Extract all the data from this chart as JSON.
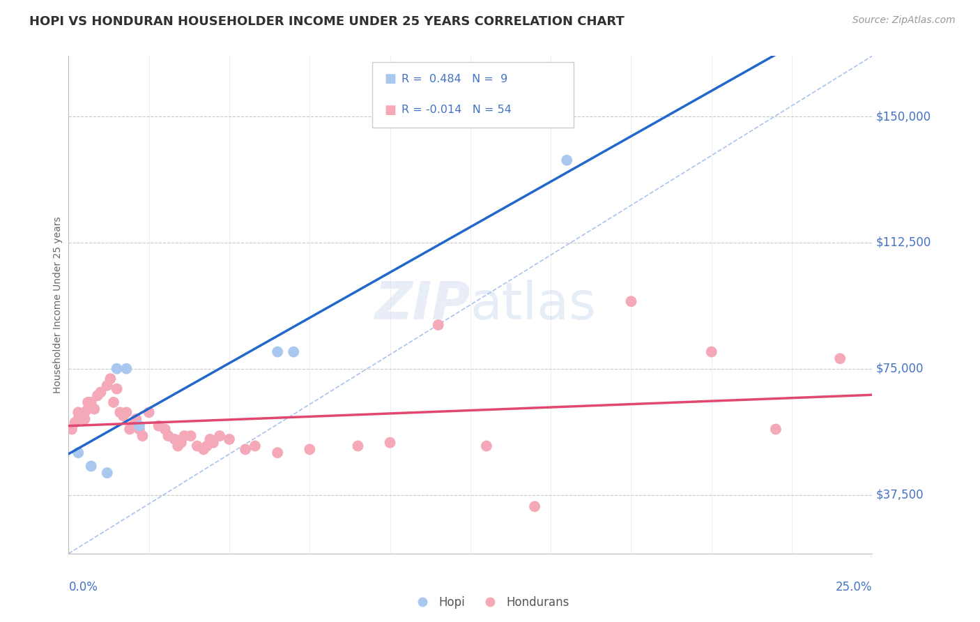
{
  "title": "HOPI VS HONDURAN HOUSEHOLDER INCOME UNDER 25 YEARS CORRELATION CHART",
  "source": "Source: ZipAtlas.com",
  "ylabel": "Householder Income Under 25 years",
  "xmin": 0.0,
  "xmax": 0.25,
  "ymin": 20000,
  "ymax": 168000,
  "ytick_labels": [
    "$150,000",
    "$112,500",
    "$75,000",
    "$37,500"
  ],
  "ytick_values": [
    150000,
    112500,
    75000,
    37500
  ],
  "legend_hopi_r": "0.484",
  "legend_hopi_n": "9",
  "legend_honduran_r": "-0.014",
  "legend_honduran_n": "54",
  "hopi_color": "#a8c8f0",
  "honduran_color": "#f4a8b8",
  "hopi_line_color": "#2268cc",
  "honduran_line_color": "#e04870",
  "diagonal_line_color": "#a0bcec",
  "bg_color": "#ffffff",
  "grid_color": "#c8c8c8",
  "axis_label_color": "#4472c4",
  "title_color": "#303030",
  "hopi_x": [
    0.003,
    0.007,
    0.012,
    0.015,
    0.018,
    0.022,
    0.065,
    0.07,
    0.155
  ],
  "hopi_y": [
    50000,
    46000,
    44000,
    75000,
    75000,
    58000,
    80000,
    80000,
    137000
  ],
  "honduran_x": [
    0.001,
    0.002,
    0.003,
    0.003,
    0.004,
    0.005,
    0.005,
    0.006,
    0.006,
    0.007,
    0.008,
    0.009,
    0.01,
    0.012,
    0.013,
    0.014,
    0.015,
    0.016,
    0.017,
    0.018,
    0.019,
    0.02,
    0.021,
    0.022,
    0.023,
    0.025,
    0.028,
    0.03,
    0.031,
    0.033,
    0.034,
    0.035,
    0.036,
    0.038,
    0.04,
    0.042,
    0.043,
    0.044,
    0.045,
    0.047,
    0.05,
    0.055,
    0.058,
    0.065,
    0.075,
    0.09,
    0.1,
    0.115,
    0.13,
    0.145,
    0.175,
    0.2,
    0.22,
    0.24
  ],
  "honduran_y": [
    57000,
    59000,
    60000,
    62000,
    61000,
    60000,
    62000,
    63000,
    65000,
    65000,
    63000,
    67000,
    68000,
    70000,
    72000,
    65000,
    69000,
    62000,
    61000,
    62000,
    57000,
    58000,
    60000,
    57000,
    55000,
    62000,
    58000,
    57000,
    55000,
    54000,
    52000,
    53000,
    55000,
    55000,
    52000,
    51000,
    52000,
    54000,
    53000,
    55000,
    54000,
    51000,
    52000,
    50000,
    51000,
    52000,
    53000,
    88000,
    52000,
    34000,
    95000,
    80000,
    57000,
    78000
  ]
}
